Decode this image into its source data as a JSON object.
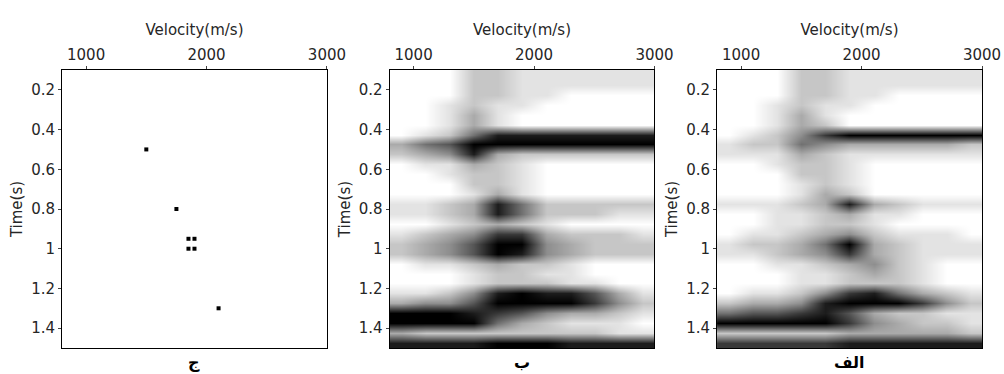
{
  "chart_data": [
    {
      "type": "scatter",
      "label": "ج",
      "x_label": "Velocity(m/s)",
      "y_label": "Time(s)",
      "xlim": [
        800,
        3000
      ],
      "xticks": [
        1000,
        2000,
        3000
      ],
      "ylim": [
        1.5,
        0.1
      ],
      "yticks": [
        0.2,
        0.4,
        0.6,
        0.8,
        1,
        1.2,
        1.4
      ],
      "marker": "square",
      "color": "#000000",
      "x": [
        1500,
        1750,
        1850,
        1900,
        1850,
        1900,
        2100
      ],
      "y": [
        0.5,
        0.8,
        0.95,
        0.95,
        1.0,
        1.0,
        1.3
      ]
    },
    {
      "type": "heatmap",
      "label": "ب",
      "x_label": "Velocity(m/s)",
      "y_label": "Time(s)",
      "xlim": [
        800,
        3000
      ],
      "xticks": [
        1000,
        2000,
        3000
      ],
      "ylim": [
        1.5,
        0.1
      ],
      "yticks": [
        0.2,
        0.4,
        0.6,
        0.8,
        1,
        1.2,
        1.4
      ],
      "x": [
        900,
        1100,
        1300,
        1500,
        1700,
        1900,
        2100,
        2300,
        2500,
        2700,
        2900
      ],
      "y": [
        0.125,
        0.175,
        0.225,
        0.275,
        0.325,
        0.375,
        0.425,
        0.475,
        0.525,
        0.575,
        0.625,
        0.675,
        0.725,
        0.775,
        0.825,
        0.875,
        0.925,
        0.975,
        1.025,
        1.075,
        1.125,
        1.175,
        1.225,
        1.275,
        1.325,
        1.375,
        1.425,
        1.475
      ],
      "z": [
        [
          0,
          0,
          0,
          2,
          2,
          1,
          1,
          1,
          1,
          1,
          1
        ],
        [
          0,
          0,
          0,
          2,
          2,
          1,
          1,
          1,
          1,
          1,
          1
        ],
        [
          0,
          0,
          0,
          2,
          2,
          1,
          1,
          0,
          0,
          0,
          0
        ],
        [
          0,
          0,
          1,
          2,
          1,
          1,
          0,
          0,
          0,
          0,
          0
        ],
        [
          0,
          0,
          1,
          3,
          1,
          0,
          0,
          0,
          0,
          0,
          0
        ],
        [
          0,
          0,
          1,
          3,
          1,
          0,
          0,
          0,
          0,
          0,
          0
        ],
        [
          0,
          1,
          2,
          5,
          8,
          8,
          8,
          8,
          8,
          8,
          8
        ],
        [
          3,
          5,
          6,
          9,
          9,
          9,
          9,
          9,
          9,
          9,
          9
        ],
        [
          2,
          3,
          4,
          8,
          3,
          2,
          2,
          2,
          2,
          2,
          2
        ],
        [
          0,
          1,
          1,
          3,
          2,
          1,
          0,
          0,
          0,
          0,
          0
        ],
        [
          0,
          0,
          1,
          2,
          2,
          1,
          0,
          0,
          0,
          0,
          0
        ],
        [
          0,
          0,
          0,
          2,
          2,
          1,
          0,
          0,
          0,
          0,
          0
        ],
        [
          0,
          0,
          0,
          1,
          3,
          1,
          0,
          0,
          0,
          0,
          0
        ],
        [
          1,
          1,
          2,
          3,
          8,
          5,
          2,
          2,
          2,
          2,
          2
        ],
        [
          1,
          1,
          2,
          3,
          8,
          5,
          2,
          2,
          2,
          1,
          1
        ],
        [
          0,
          0,
          1,
          2,
          3,
          2,
          1,
          0,
          0,
          0,
          0
        ],
        [
          1,
          2,
          3,
          4,
          7,
          7,
          3,
          2,
          2,
          2,
          1
        ],
        [
          2,
          3,
          4,
          6,
          9,
          9,
          4,
          3,
          2,
          2,
          2
        ],
        [
          2,
          3,
          4,
          6,
          9,
          8,
          4,
          3,
          2,
          2,
          2
        ],
        [
          0,
          1,
          1,
          2,
          3,
          2,
          2,
          1,
          0,
          0,
          0
        ],
        [
          0,
          0,
          0,
          1,
          2,
          2,
          1,
          1,
          0,
          0,
          0
        ],
        [
          0,
          0,
          0,
          1,
          2,
          2,
          2,
          1,
          1,
          0,
          0
        ],
        [
          1,
          1,
          2,
          4,
          8,
          9,
          8,
          8,
          6,
          3,
          1
        ],
        [
          3,
          4,
          4,
          6,
          9,
          9,
          9,
          9,
          7,
          4,
          2
        ],
        [
          9,
          9,
          9,
          8,
          7,
          6,
          4,
          3,
          3,
          2,
          1
        ],
        [
          9,
          9,
          9,
          9,
          5,
          3,
          2,
          1,
          1,
          1,
          0
        ],
        [
          3,
          2,
          2,
          2,
          2,
          2,
          2,
          2,
          2,
          1,
          1
        ],
        [
          8,
          8,
          8,
          8,
          9,
          9,
          9,
          8,
          8,
          8,
          8
        ]
      ]
    },
    {
      "type": "heatmap",
      "label": "الف",
      "x_label": "Velocity(m/s)",
      "y_label": "Time(s)",
      "xlim": [
        800,
        3000
      ],
      "xticks": [
        1000,
        2000,
        3000
      ],
      "ylim": [
        1.5,
        0.1
      ],
      "yticks": [
        0.2,
        0.4,
        0.6,
        0.8,
        1,
        1.2,
        1.4
      ],
      "x": [
        900,
        1100,
        1300,
        1500,
        1700,
        1900,
        2100,
        2300,
        2500,
        2700,
        2900
      ],
      "y": [
        0.125,
        0.175,
        0.225,
        0.275,
        0.325,
        0.375,
        0.425,
        0.475,
        0.525,
        0.575,
        0.625,
        0.675,
        0.725,
        0.775,
        0.825,
        0.875,
        0.925,
        0.975,
        1.025,
        1.075,
        1.125,
        1.175,
        1.225,
        1.275,
        1.325,
        1.375,
        1.425,
        1.475
      ],
      "z": [
        [
          0,
          0,
          0,
          2,
          2,
          1,
          1,
          1,
          1,
          1,
          1
        ],
        [
          0,
          0,
          0,
          2,
          2,
          1,
          1,
          1,
          1,
          1,
          1
        ],
        [
          0,
          0,
          0,
          2,
          2,
          1,
          1,
          0,
          0,
          0,
          0
        ],
        [
          0,
          0,
          1,
          2,
          1,
          1,
          0,
          0,
          0,
          0,
          0
        ],
        [
          0,
          0,
          1,
          3,
          1,
          0,
          0,
          0,
          0,
          0,
          0
        ],
        [
          0,
          0,
          1,
          3,
          2,
          0,
          0,
          0,
          0,
          0,
          0
        ],
        [
          0,
          1,
          2,
          4,
          7,
          9,
          9,
          9,
          9,
          9,
          9
        ],
        [
          1,
          2,
          2,
          5,
          4,
          3,
          3,
          3,
          3,
          3,
          2
        ],
        [
          1,
          1,
          1,
          3,
          2,
          1,
          1,
          1,
          1,
          1,
          1
        ],
        [
          0,
          0,
          1,
          2,
          2,
          1,
          0,
          0,
          0,
          0,
          0
        ],
        [
          0,
          0,
          0,
          2,
          2,
          1,
          0,
          0,
          0,
          0,
          0
        ],
        [
          0,
          0,
          0,
          1,
          2,
          1,
          0,
          0,
          0,
          0,
          0
        ],
        [
          0,
          0,
          0,
          1,
          3,
          2,
          0,
          0,
          0,
          0,
          0
        ],
        [
          1,
          1,
          1,
          2,
          3,
          8,
          3,
          2,
          1,
          1,
          1
        ],
        [
          0,
          0,
          1,
          1,
          2,
          3,
          1,
          1,
          0,
          0,
          0
        ],
        [
          0,
          0,
          1,
          1,
          2,
          2,
          1,
          0,
          0,
          0,
          0
        ],
        [
          0,
          1,
          1,
          2,
          3,
          4,
          2,
          1,
          1,
          1,
          0
        ],
        [
          1,
          2,
          2,
          3,
          5,
          9,
          3,
          2,
          1,
          1,
          1
        ],
        [
          1,
          1,
          2,
          3,
          4,
          7,
          3,
          2,
          1,
          1,
          1
        ],
        [
          0,
          0,
          1,
          1,
          2,
          3,
          4,
          2,
          1,
          0,
          0
        ],
        [
          0,
          0,
          0,
          1,
          1,
          2,
          3,
          2,
          1,
          0,
          0
        ],
        [
          0,
          0,
          0,
          1,
          1,
          2,
          2,
          2,
          1,
          0,
          0
        ],
        [
          0,
          1,
          1,
          2,
          4,
          7,
          8,
          5,
          3,
          2,
          1
        ],
        [
          2,
          3,
          3,
          4,
          8,
          9,
          9,
          9,
          7,
          4,
          2
        ],
        [
          5,
          6,
          6,
          7,
          8,
          6,
          3,
          2,
          2,
          1,
          1
        ],
        [
          9,
          9,
          9,
          9,
          9,
          7,
          4,
          3,
          2,
          2,
          1
        ],
        [
          2,
          2,
          2,
          2,
          2,
          3,
          3,
          3,
          3,
          3,
          2
        ],
        [
          7,
          7,
          7,
          7,
          7,
          8,
          8,
          8,
          8,
          8,
          8
        ]
      ]
    }
  ]
}
